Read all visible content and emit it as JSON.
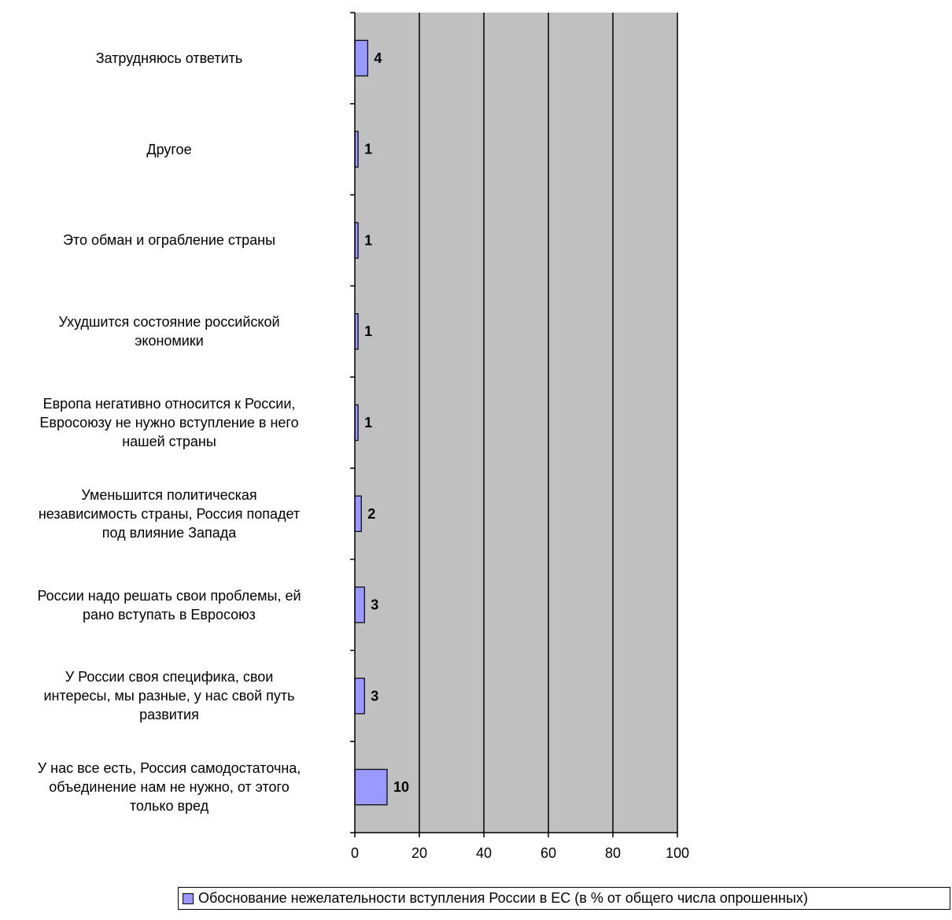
{
  "chart_data": {
    "type": "bar",
    "orientation": "horizontal",
    "categories": [
      "Затрудняюсь ответить",
      "Другое",
      "Это обман и ограбление страны",
      "Ухудшится состояние российской экономики",
      "Европа негативно относится к России, Евросоюзу не нужно вступление в него нашей страны",
      "Уменьшится политическая независимость страны, Россия попадет под влияние Запада",
      "России надо решать свои проблемы, ей рано вступать в Евросоюз",
      "У России своя специфика, свои интересы, мы разные, у нас свой путь развития",
      "У нас все есть, Россия самодостаточна, объединение нам не нужно, от этого только вред"
    ],
    "category_lines": [
      [
        "Затрудняюсь ответить"
      ],
      [
        "Другое"
      ],
      [
        "Это обман и ограбление страны"
      ],
      [
        "Ухудшится состояние российской",
        "экономики"
      ],
      [
        "Европа негативно относится к России,",
        "Евросоюзу не нужно вступление в него",
        "нашей страны"
      ],
      [
        "Уменьшится политическая",
        "независимость страны, Россия попадет",
        "под влияние Запада"
      ],
      [
        "России надо решать свои проблемы, ей",
        "рано вступать в Евросоюз"
      ],
      [
        "У России своя специфика, свои",
        "интересы, мы разные, у нас свой путь",
        "развития"
      ],
      [
        "У нас все есть, Россия самодостаточна,",
        "объединение нам не нужно, от этого",
        "только вред"
      ]
    ],
    "series": [
      {
        "name": "Обоснование нежелательности вступления России в ЕС (в % от общего числа опрошенных)",
        "values": [
          4,
          1,
          1,
          1,
          1,
          2,
          3,
          3,
          10
        ],
        "color": "#9999ff"
      }
    ],
    "xlim": [
      0,
      100
    ],
    "xticks": [
      0,
      20,
      40,
      60,
      80,
      100
    ],
    "grid": "vertical",
    "plot_background": "#c0c0c0",
    "legend_position": "bottom"
  }
}
